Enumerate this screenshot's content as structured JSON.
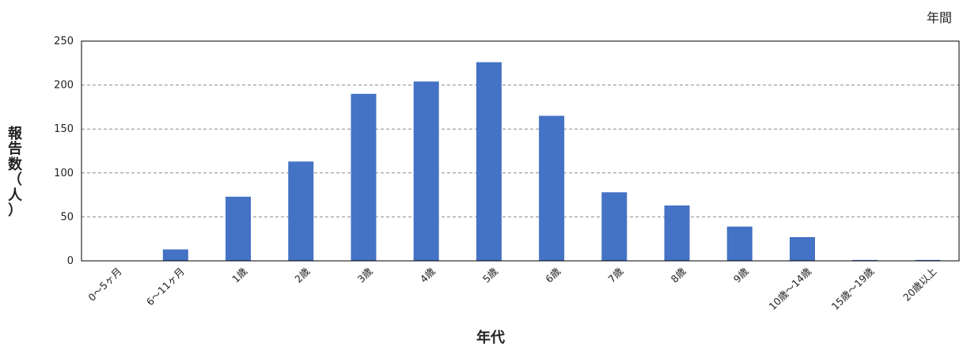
{
  "period_label": "年間",
  "chart_data": {
    "type": "bar",
    "title": "",
    "xlabel": "年代",
    "ylabel": "報告数（人）",
    "ylabel_chars": [
      "報",
      "告",
      "数",
      "（",
      "人",
      "）"
    ],
    "categories": [
      "0～5ヶ月",
      "6～11ヶ月",
      "1歳",
      "2歳",
      "3歳",
      "4歳",
      "5歳",
      "6歳",
      "7歳",
      "8歳",
      "9歳",
      "10歳～14歳",
      "15歳～19歳",
      "20歳以上"
    ],
    "values": [
      0,
      13,
      73,
      113,
      190,
      204,
      226,
      165,
      78,
      63,
      39,
      27,
      1,
      1
    ],
    "ylim": [
      0,
      250
    ],
    "yticks": [
      0,
      50,
      100,
      150,
      200,
      250
    ],
    "grid": true,
    "bar_color": "#4472C4"
  }
}
